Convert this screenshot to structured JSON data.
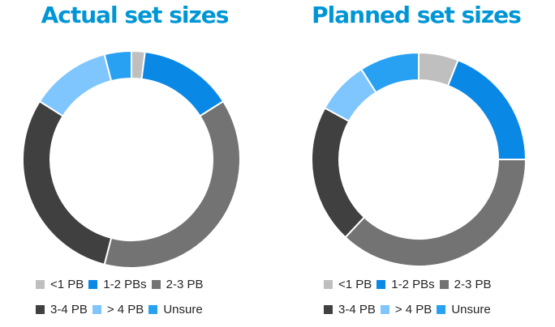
{
  "chart_data": [
    {
      "type": "pie",
      "title": "Actual set sizes",
      "categories": [
        "<1 PB",
        "1-2 PBs",
        "2-3 PB",
        "3-4 PB",
        "> 4 PB",
        "Unsure"
      ],
      "values": [
        2,
        14,
        38,
        30,
        12,
        4
      ],
      "colors": [
        "#bfbfbf",
        "#0a88e6",
        "#737373",
        "#404040",
        "#7fc6ff",
        "#29a1f2"
      ],
      "donut": true,
      "legend_position": "bottom"
    },
    {
      "type": "pie",
      "title": "Planned set sizes",
      "categories": [
        "<1 PB",
        "1-2 PBs",
        "2-3 PB",
        "3-4 PB",
        "> 4 PB",
        "Unsure"
      ],
      "values": [
        6,
        19,
        37,
        21,
        8,
        9
      ],
      "colors": [
        "#bfbfbf",
        "#0a88e6",
        "#737373",
        "#404040",
        "#7fc6ff",
        "#29a1f2"
      ],
      "donut": true,
      "legend_position": "bottom"
    }
  ]
}
